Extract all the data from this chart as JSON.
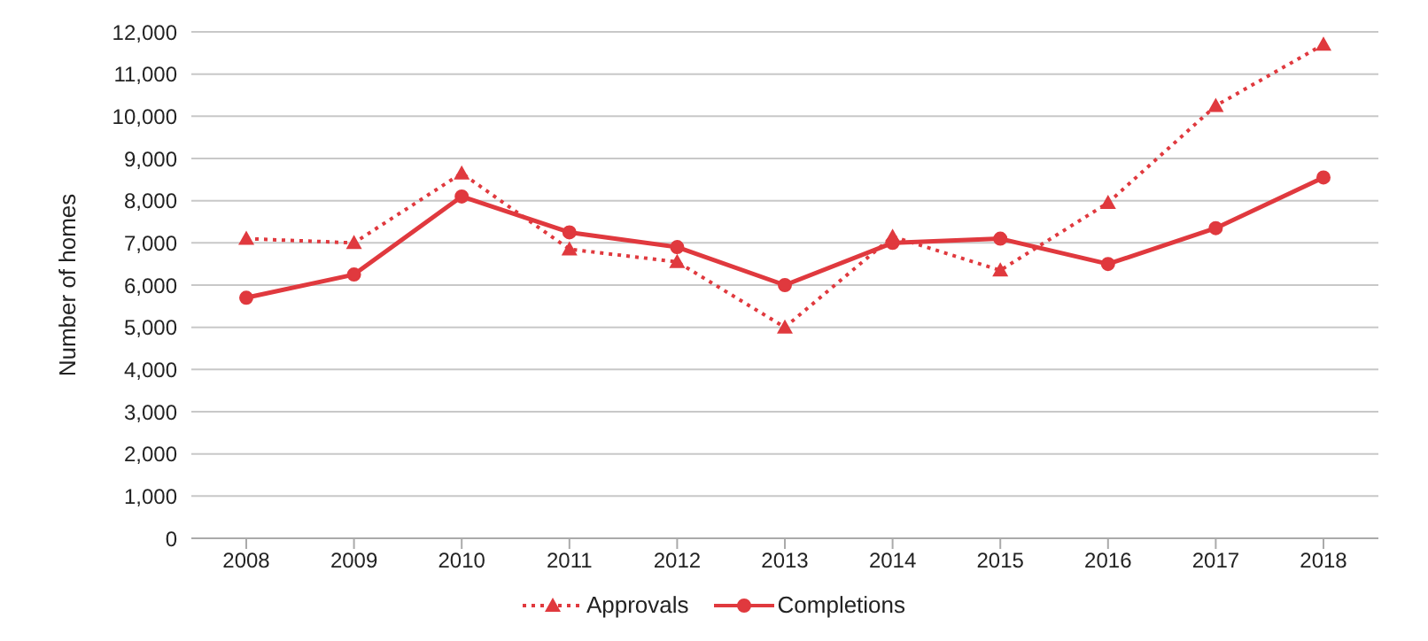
{
  "chart_data": {
    "type": "line",
    "ylabel": "Number of homes",
    "categories": [
      "2008",
      "2009",
      "2010",
      "2011",
      "2012",
      "2013",
      "2014",
      "2015",
      "2016",
      "2017",
      "2018"
    ],
    "series": [
      {
        "name": "Approvals",
        "color": "#e0393e",
        "marker": "triangle",
        "line_style": "dotted",
        "values": [
          7100,
          7000,
          8650,
          6850,
          6550,
          5000,
          7150,
          6350,
          7950,
          10250,
          11700
        ]
      },
      {
        "name": "Completions",
        "color": "#e0393e",
        "marker": "circle",
        "line_style": "solid",
        "values": [
          5700,
          6250,
          8100,
          7250,
          6900,
          6000,
          7000,
          7100,
          6500,
          7350,
          8550
        ]
      }
    ],
    "ylim": [
      0,
      12000
    ],
    "yticks": [
      0,
      {
        "value": 1000,
        "label": "1,000"
      },
      {
        "value": 2000,
        "label": "2,000"
      },
      {
        "value": 3000,
        "label": "3,000"
      },
      {
        "value": 4000,
        "label": "4,000"
      },
      {
        "value": 5000,
        "label": "5,000"
      },
      {
        "value": 6000,
        "label": "6,000"
      },
      {
        "value": 7000,
        "label": "7,000"
      },
      {
        "value": 8000,
        "label": "8,000"
      },
      {
        "value": 9000,
        "label": "9,000"
      },
      {
        "value": 10000,
        "label": "10,000"
      },
      {
        "value": 11000,
        "label": "11,000"
      },
      {
        "value": 12000,
        "label": "12,000"
      }
    ],
    "grid": "y",
    "legend": "bottom"
  }
}
